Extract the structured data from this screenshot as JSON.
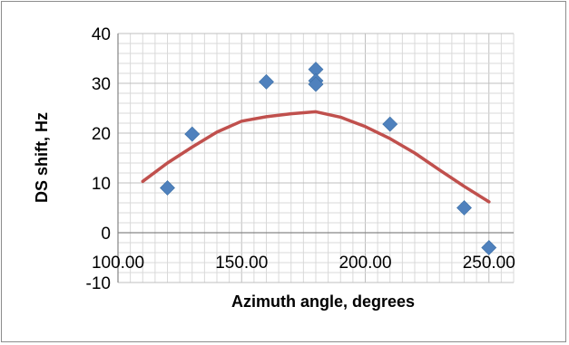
{
  "chart_data": {
    "type": "scatter",
    "title": "",
    "xlabel": "Azimuth angle, degrees",
    "ylabel": "DS shift, Hz",
    "xlim": [
      100,
      260
    ],
    "ylim": [
      -10,
      40
    ],
    "grid": true,
    "x_minor_step": 5,
    "y_minor_step": 2,
    "x_ticks": [
      {
        "value": 100,
        "label": "100.00"
      },
      {
        "value": 150,
        "label": "150.00"
      },
      {
        "value": 200,
        "label": "200.00"
      },
      {
        "value": 250,
        "label": "250.00"
      }
    ],
    "y_ticks": [
      {
        "value": -10,
        "label": "-10"
      },
      {
        "value": 0,
        "label": "0"
      },
      {
        "value": 10,
        "label": "10"
      },
      {
        "value": 20,
        "label": "20"
      },
      {
        "value": 30,
        "label": "30"
      },
      {
        "value": 40,
        "label": "40"
      }
    ],
    "series": [
      {
        "kind": "points",
        "marker": "diamond",
        "color": "#4f81bd",
        "points": [
          {
            "x": 120,
            "y": 9
          },
          {
            "x": 130,
            "y": 19.8
          },
          {
            "x": 160,
            "y": 30.3
          },
          {
            "x": 180,
            "y": 32.8
          },
          {
            "x": 180,
            "y": 30.5
          },
          {
            "x": 180,
            "y": 29.8
          },
          {
            "x": 210,
            "y": 21.8
          },
          {
            "x": 240,
            "y": 5
          },
          {
            "x": 250,
            "y": -3
          }
        ]
      },
      {
        "kind": "line",
        "color": "#c0504d",
        "points": [
          {
            "x": 110,
            "y": 10.3
          },
          {
            "x": 120,
            "y": 14
          },
          {
            "x": 130,
            "y": 17.2
          },
          {
            "x": 140,
            "y": 20.2
          },
          {
            "x": 150,
            "y": 22.4
          },
          {
            "x": 160,
            "y": 23.3
          },
          {
            "x": 170,
            "y": 23.9
          },
          {
            "x": 180,
            "y": 24.3
          },
          {
            "x": 190,
            "y": 23.2
          },
          {
            "x": 200,
            "y": 21.3
          },
          {
            "x": 210,
            "y": 18.9
          },
          {
            "x": 220,
            "y": 16
          },
          {
            "x": 230,
            "y": 12.6
          },
          {
            "x": 240,
            "y": 9.3
          },
          {
            "x": 250,
            "y": 6.2
          }
        ]
      }
    ]
  }
}
